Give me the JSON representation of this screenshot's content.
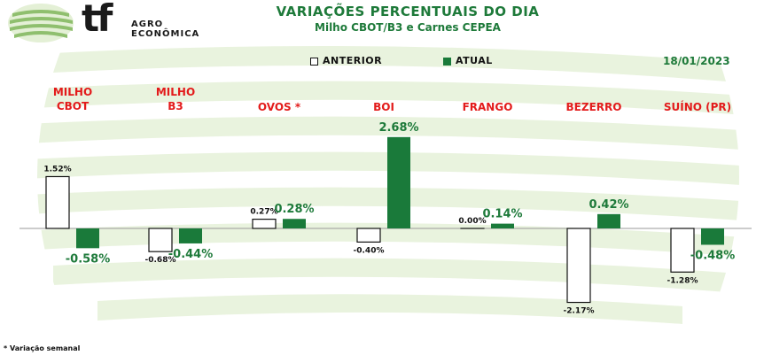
{
  "header": {
    "logo_text": "tf",
    "logo_sub_1": "AGRO",
    "logo_sub_2": "ECONÔMICA",
    "title": "VARIAÇÕES PERCENTUAIS DO DIA",
    "subtitle": "Milho CBOT/B3 e Carnes CEPEA",
    "date": "18/01/2023"
  },
  "legend": {
    "anterior": "ANTERIOR",
    "atual": "ATUAL"
  },
  "footnote": "* Variação semanal",
  "colors": {
    "anterior_fill": "#ffffff",
    "anterior_stroke": "#111111",
    "atual_fill": "#1a7a3a",
    "category_label": "#e31b1b",
    "title": "#1e7a3a",
    "watermark": "#dbeccb"
  },
  "chart_data": {
    "type": "bar",
    "categories": [
      [
        "MILHO",
        "CBOT"
      ],
      [
        "MILHO",
        "B3"
      ],
      [
        "OVOS *"
      ],
      [
        "BOI"
      ],
      [
        "FRANGO"
      ],
      [
        "BEZERRO"
      ],
      [
        "SUÍNO (PR)"
      ]
    ],
    "series": [
      {
        "name": "ANTERIOR",
        "values": [
          1.52,
          -0.68,
          0.27,
          -0.4,
          0.0,
          -2.17,
          -1.28
        ],
        "labels": [
          "1.52%",
          "-0.68%",
          "0.27%",
          "-0.40%",
          "0.00%",
          "-2.17%",
          "-1.28%"
        ]
      },
      {
        "name": "ATUAL",
        "values": [
          -0.58,
          -0.44,
          0.28,
          2.68,
          0.14,
          0.42,
          -0.48
        ],
        "labels": [
          "-0.58%",
          "-0.44%",
          "0.28%",
          "2.68%",
          "0.14%",
          "0.42%",
          "-0.48%"
        ]
      }
    ],
    "grid": false,
    "legend_position": "top-center"
  }
}
